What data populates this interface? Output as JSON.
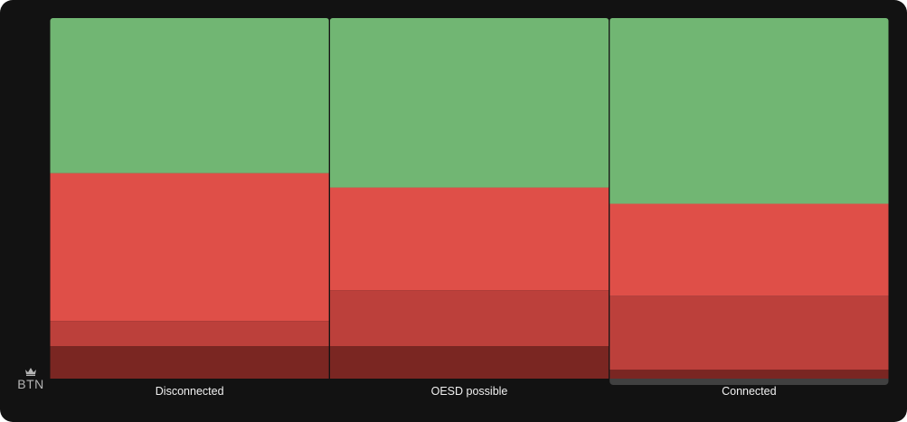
{
  "chart_data": {
    "type": "bar",
    "stacked": true,
    "normalized": true,
    "categories": [
      "Disconnected",
      "OESD possible",
      "Connected"
    ],
    "highlighted_category": "Connected",
    "ylim": [
      0,
      100
    ],
    "grid": false,
    "legend": "none",
    "series": [
      {
        "color": "#7a2622",
        "values": [
          9,
          9,
          2.5
        ]
      },
      {
        "color": "#bc403b",
        "values": [
          7,
          15.5,
          20.5
        ]
      },
      {
        "color": "#df4f48",
        "values": [
          41,
          28.5,
          25.5
        ]
      },
      {
        "color": "#71b673",
        "values": [
          43,
          47,
          51.5
        ]
      }
    ]
  },
  "colors": {
    "background": "#121212",
    "highlight_tab": "#404040",
    "label_text": "#f0f0f0"
  },
  "logo": {
    "text": "BTN",
    "icon": "crown-icon"
  }
}
